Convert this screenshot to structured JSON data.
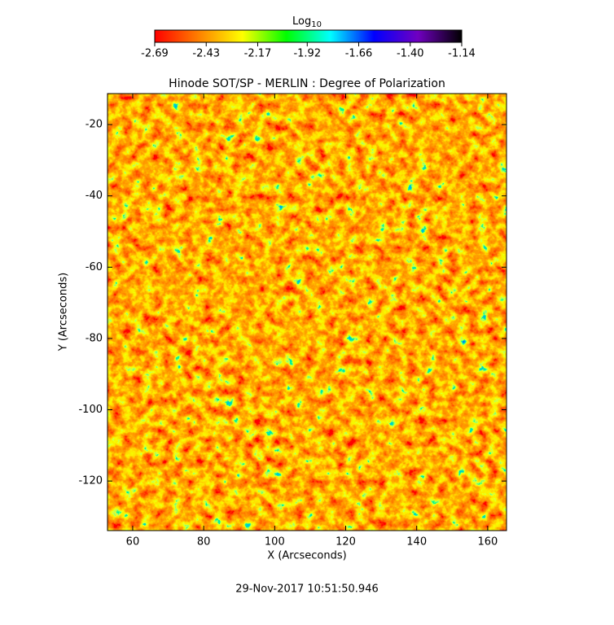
{
  "chart_data": {
    "type": "heatmap",
    "title": "Hinode SOT/SP - MERLIN : Degree of Polarization",
    "xlabel": "X (Arcseconds)",
    "ylabel": "Y (Arcseconds)",
    "xlim": [
      52.9,
      165.3
    ],
    "ylim": [
      -133.9,
      -11.3
    ],
    "xticks": [
      60,
      80,
      100,
      120,
      140,
      160
    ],
    "yticks": [
      -20,
      -40,
      -60,
      -80,
      -100,
      -120
    ],
    "colorbar": {
      "label": "Log",
      "label_subscript": "10",
      "lim": [
        -2.69,
        -1.14
      ],
      "ticks": [
        -2.69,
        -2.43,
        -2.17,
        -1.92,
        -1.66,
        {
          "value": -1.4,
          "label": "-1.40"
        },
        -1.14
      ],
      "colormap": [
        "#ff0000",
        "#ff8000",
        "#ffff00",
        "#00ff00",
        "#00ffff",
        "#0000ff",
        "#7000c0",
        "#000000"
      ]
    },
    "timestamp": "29-Nov-2017 10:51:50.946"
  }
}
